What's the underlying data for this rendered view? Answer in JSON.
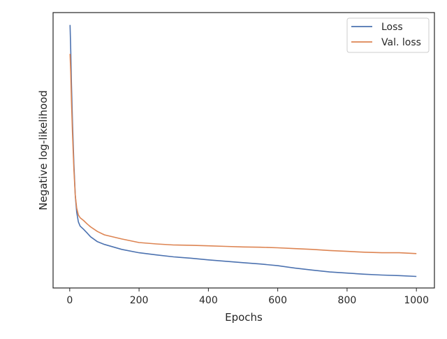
{
  "chart_data": {
    "type": "line",
    "title": "",
    "xlabel": "Epochs",
    "ylabel": "Negative log-likelihood",
    "xlim": [
      -48,
      1052
    ],
    "ylim": [
      0.0,
      1.0
    ],
    "y_ticks_visible": false,
    "x_ticks": [
      0,
      200,
      400,
      600,
      800,
      1000
    ],
    "x_tick_labels": [
      "0",
      "200",
      "400",
      "600",
      "800",
      "1000"
    ],
    "grid": false,
    "legend": {
      "position": "top-right",
      "entries": [
        "Loss",
        "Val. loss"
      ]
    },
    "series": [
      {
        "name": "Loss",
        "color": "#4c72b0",
        "x": [
          1,
          3,
          5,
          8,
          12,
          16,
          20,
          25,
          30,
          40,
          50,
          60,
          80,
          100,
          150,
          200,
          250,
          300,
          350,
          400,
          450,
          500,
          550,
          600,
          650,
          700,
          750,
          800,
          850,
          900,
          950,
          1000
        ],
        "values": [
          0.955,
          0.86,
          0.74,
          0.6,
          0.45,
          0.335,
          0.275,
          0.24,
          0.225,
          0.213,
          0.2,
          0.186,
          0.168,
          0.158,
          0.14,
          0.128,
          0.12,
          0.113,
          0.108,
          0.102,
          0.097,
          0.092,
          0.087,
          0.081,
          0.072,
          0.065,
          0.058,
          0.054,
          0.05,
          0.047,
          0.045,
          0.042
        ]
      },
      {
        "name": "Val. loss",
        "color": "#dd8452",
        "x": [
          1,
          3,
          5,
          8,
          12,
          16,
          20,
          25,
          30,
          40,
          50,
          60,
          80,
          100,
          150,
          200,
          250,
          300,
          350,
          400,
          450,
          500,
          550,
          600,
          650,
          700,
          750,
          800,
          850,
          900,
          950,
          1000
        ],
        "values": [
          0.85,
          0.78,
          0.68,
          0.56,
          0.43,
          0.335,
          0.29,
          0.265,
          0.255,
          0.245,
          0.233,
          0.222,
          0.205,
          0.193,
          0.178,
          0.165,
          0.16,
          0.156,
          0.155,
          0.153,
          0.151,
          0.149,
          0.148,
          0.146,
          0.143,
          0.14,
          0.136,
          0.133,
          0.13,
          0.128,
          0.128,
          0.125
        ]
      }
    ]
  }
}
